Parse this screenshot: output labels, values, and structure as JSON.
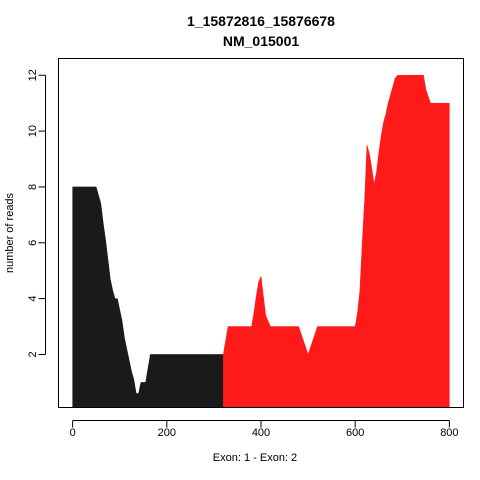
{
  "chart_data": {
    "type": "area",
    "title": "1_15872816_15876678",
    "subtitle": "NM_015001",
    "xlabel": "Exon: 1 - Exon: 2",
    "ylabel": "number of reads",
    "xlim": [
      -30,
      830
    ],
    "ylim": [
      0.1,
      12.6
    ],
    "xticks": [
      "0",
      "200",
      "400",
      "600",
      "800"
    ],
    "yticks": [
      "2",
      "4",
      "6",
      "8",
      "10",
      "12"
    ],
    "grid": false,
    "legend": "none",
    "series": [
      {
        "color": "#1a1a1a",
        "x": [
          0,
          50,
          55,
          60,
          65,
          70,
          75,
          80,
          85,
          90,
          95,
          100,
          105,
          110,
          115,
          120,
          125,
          130,
          135,
          140,
          145,
          150,
          155,
          160,
          165,
          170,
          175,
          180,
          320
        ],
        "y": [
          8,
          8,
          7.7,
          7.4,
          6.7,
          6.1,
          5.4,
          4.7,
          4.3,
          4,
          4,
          3.6,
          3.2,
          2.6,
          2.2,
          1.8,
          1.4,
          1.1,
          0.6,
          0.6,
          1,
          1,
          1,
          1.5,
          2,
          2,
          2,
          2,
          2
        ]
      },
      {
        "color": "#ff1a1a",
        "x": [
          320,
          330,
          380,
          385,
          390,
          395,
          400,
          405,
          410,
          420,
          480,
          490,
          500,
          510,
          520,
          600,
          605,
          610,
          615,
          620,
          625,
          630,
          635,
          640,
          645,
          650,
          655,
          660,
          665,
          670,
          675,
          680,
          685,
          690,
          695,
          700,
          745,
          750,
          760,
          800
        ],
        "y": [
          2,
          3,
          3,
          3.5,
          4.1,
          4.6,
          4.8,
          4.1,
          3.4,
          3,
          3,
          2.5,
          2,
          2.5,
          3,
          3,
          3.5,
          4.3,
          6,
          7.5,
          9.5,
          9.2,
          8.7,
          8.1,
          8.5,
          9.2,
          9.8,
          10.3,
          10.6,
          11,
          11.3,
          11.6,
          11.9,
          12,
          12,
          12,
          12,
          11.5,
          11,
          11
        ]
      }
    ]
  }
}
